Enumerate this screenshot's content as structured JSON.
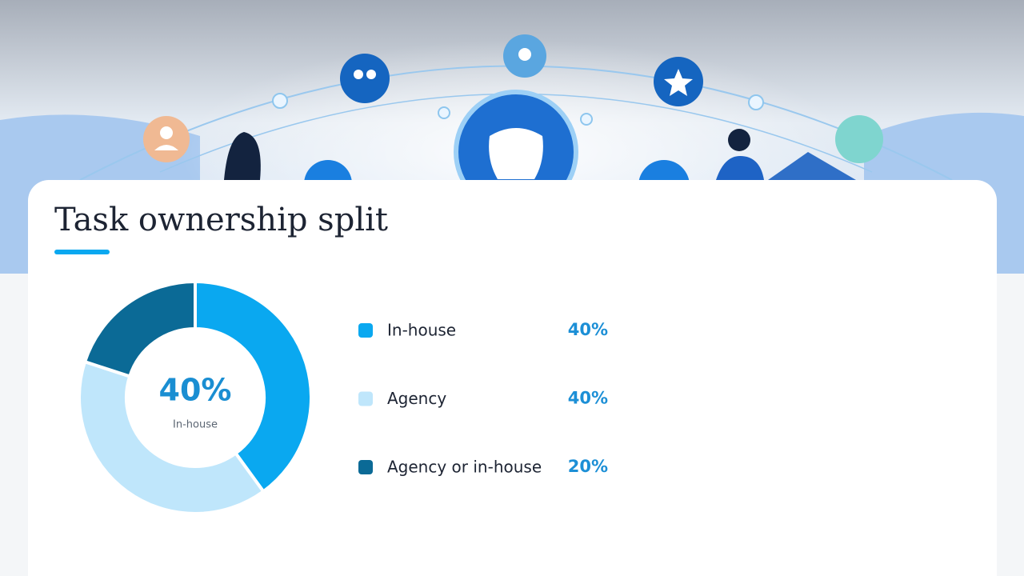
{
  "chart_data": {
    "type": "pie",
    "donut": true,
    "title": "Task ownership split",
    "categories": [
      "In-house",
      "Agency",
      "Agency or in-house"
    ],
    "values": [
      40,
      40,
      20
    ],
    "value_labels": [
      "40%",
      "40%",
      "20%"
    ],
    "colors": [
      "#0aa8f0",
      "#bfe6fb",
      "#0b6a96"
    ],
    "center_index": 0
  }
}
